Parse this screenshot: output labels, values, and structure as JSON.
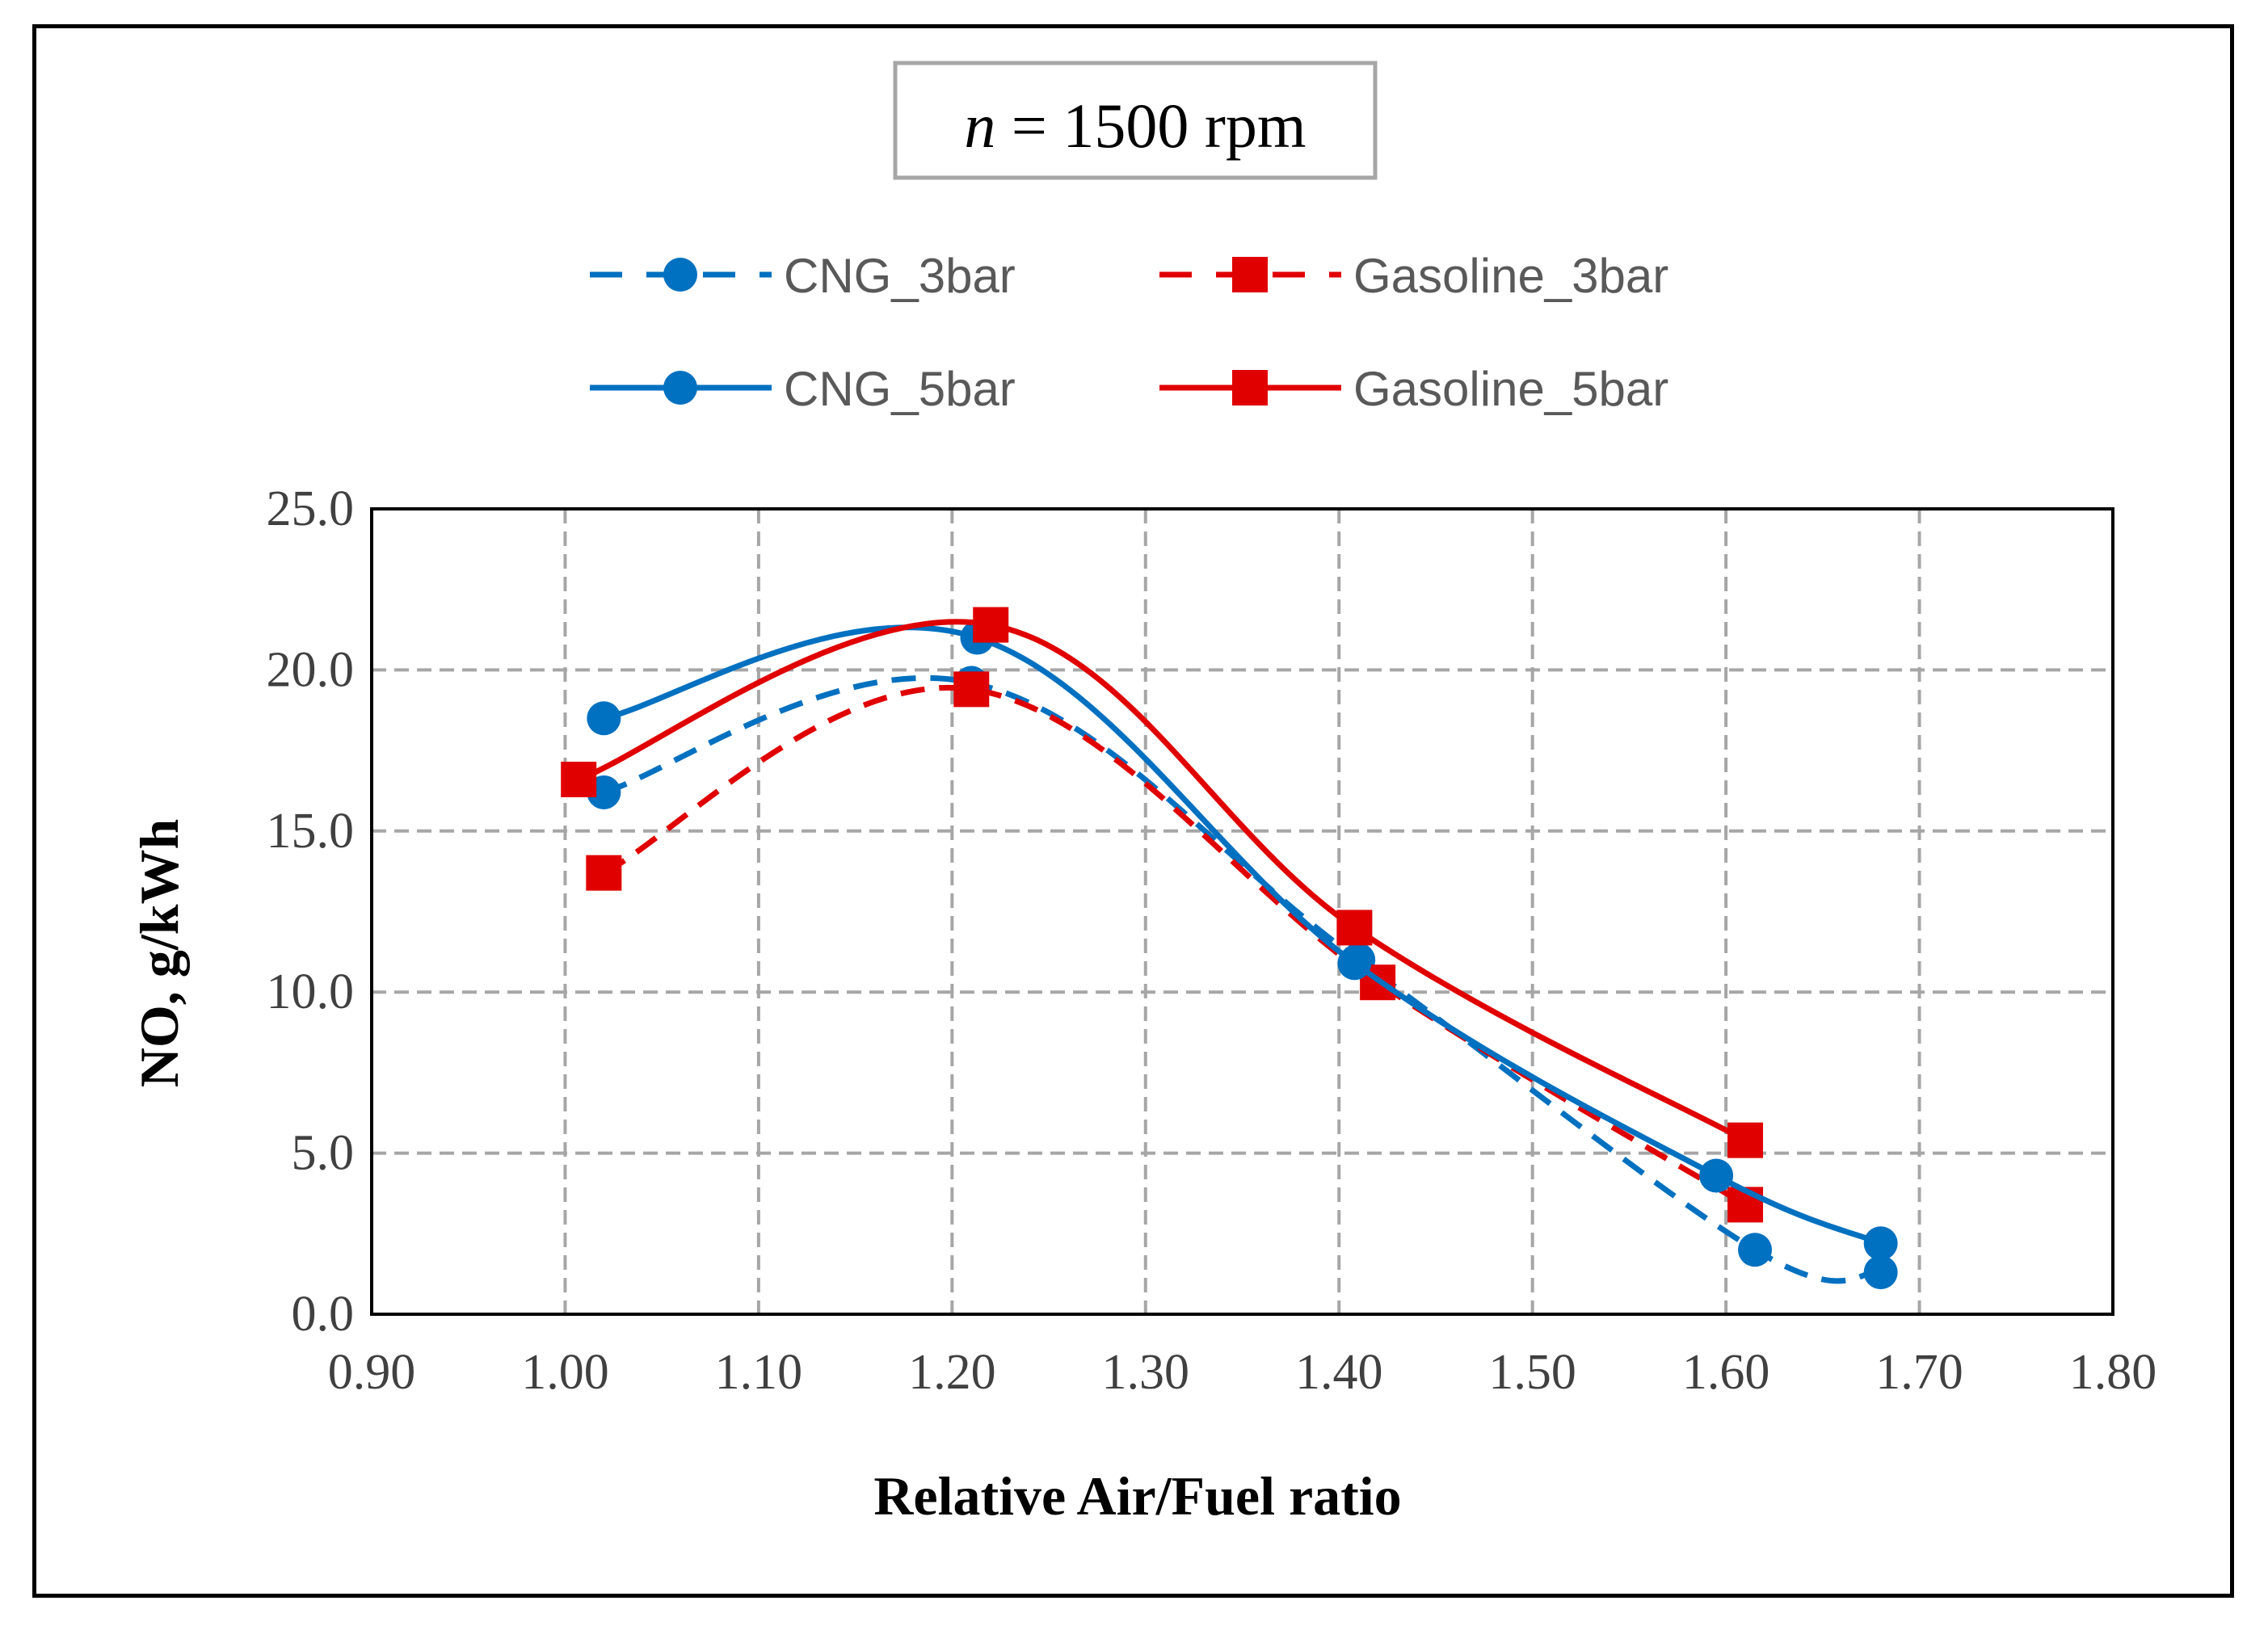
{
  "chart_data": {
    "type": "line",
    "title_var": "n",
    "title_rest": " = 1500 rpm",
    "xlabel": "Relative Air/Fuel ratio",
    "ylabel": "NO, g/kWh",
    "xlim": [
      0.9,
      1.8
    ],
    "ylim": [
      0,
      25
    ],
    "xticks": [
      0.9,
      1.0,
      1.1,
      1.2,
      1.3,
      1.4,
      1.5,
      1.6,
      1.7,
      1.8
    ],
    "xtick_labels": [
      "0.90",
      "1.00",
      "1.10",
      "1.20",
      "1.30",
      "1.40",
      "1.50",
      "1.60",
      "1.70",
      "1.80"
    ],
    "yticks": [
      0,
      5,
      10,
      15,
      20,
      25
    ],
    "ytick_labels": [
      "0.0",
      "5.0",
      "10.0",
      "15.0",
      "20.0",
      "25.0"
    ],
    "grid": true,
    "legend_position": "top",
    "series": [
      {
        "name": "CNG_3bar",
        "color": "#0070C0",
        "marker": "circle",
        "dash": true,
        "x": [
          1.02,
          1.21,
          1.41,
          1.615,
          1.68
        ],
        "y": [
          16.2,
          19.6,
          11.0,
          2.0,
          1.3
        ]
      },
      {
        "name": "Gasoline_3bar",
        "color": "#E00000",
        "marker": "square",
        "dash": true,
        "x": [
          1.02,
          1.21,
          1.42,
          1.61
        ],
        "y": [
          13.7,
          19.4,
          10.3,
          3.4
        ]
      },
      {
        "name": "CNG_5bar",
        "color": "#0070C0",
        "marker": "circle",
        "dash": false,
        "x": [
          1.02,
          1.213,
          1.408,
          1.595,
          1.68
        ],
        "y": [
          18.5,
          21.0,
          10.9,
          4.3,
          2.2
        ]
      },
      {
        "name": "Gasoline_5bar",
        "color": "#E00000",
        "marker": "square",
        "dash": false,
        "x": [
          1.007,
          1.22,
          1.408,
          1.61
        ],
        "y": [
          16.6,
          21.4,
          12.0,
          5.4
        ]
      }
    ]
  }
}
